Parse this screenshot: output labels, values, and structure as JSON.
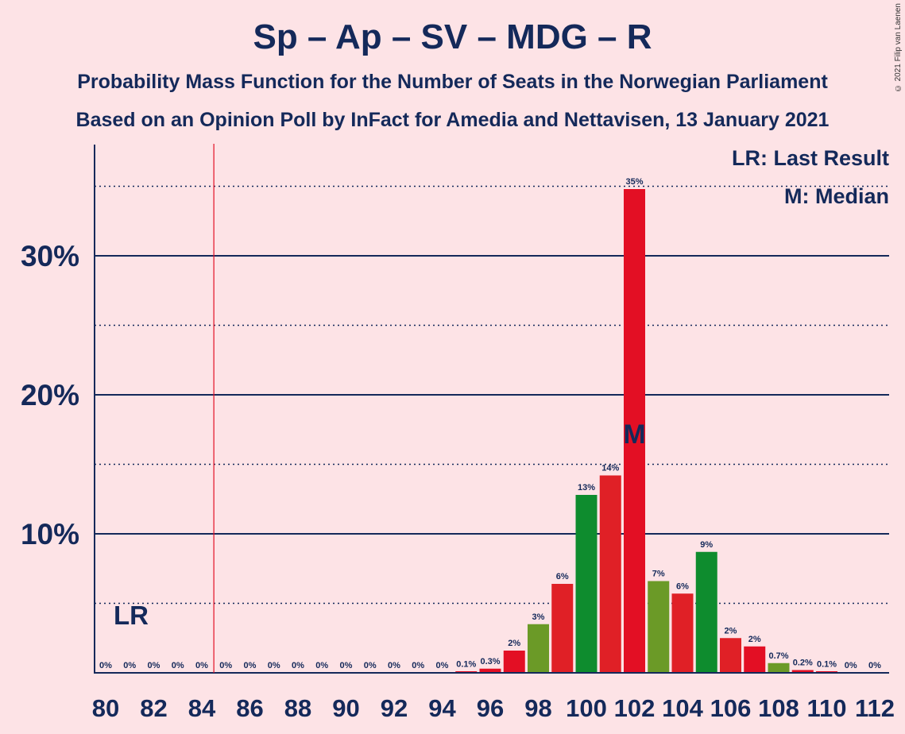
{
  "title": "Sp – Ap – SV – MDG – R",
  "subtitle": "Probability Mass Function for the Number of Seats in the Norwegian Parliament",
  "subtitle2": "Based on an Opinion Poll by InFact for Amedia and Nettavisen, 13 January 2021",
  "copyright": "© 2021 Filip van Laenen",
  "legend": {
    "lr": "LR: Last Result",
    "median": "M: Median"
  },
  "lr_label": "LR",
  "median_label": "M",
  "colors": {
    "red": "#E30F24",
    "red_alt": "#E02026",
    "green": "#0E8C2E",
    "olive": "#6B9A27",
    "axis": "#14295A",
    "lr_line": "#E30F24",
    "background": "#FDE3E6"
  },
  "chart_data": {
    "type": "bar",
    "x": [
      80,
      81,
      82,
      83,
      84,
      85,
      86,
      87,
      88,
      89,
      90,
      91,
      92,
      93,
      94,
      95,
      96,
      97,
      98,
      99,
      100,
      101,
      102,
      103,
      104,
      105,
      106,
      107,
      108,
      109,
      110,
      111,
      112
    ],
    "values": [
      0,
      0,
      0,
      0,
      0,
      0,
      0,
      0,
      0,
      0,
      0,
      0,
      0,
      0,
      0,
      0.1,
      0.3,
      1.6,
      3.5,
      6.4,
      12.8,
      14.2,
      34.8,
      6.6,
      5.7,
      8.7,
      2.5,
      1.9,
      0.7,
      0.2,
      0.1,
      0,
      0
    ],
    "labels": [
      "0%",
      "0%",
      "0%",
      "0%",
      "0%",
      "0%",
      "0%",
      "0%",
      "0%",
      "0%",
      "0%",
      "0%",
      "0%",
      "0%",
      "0%",
      "0.1%",
      "0.3%",
      "2%",
      "3%",
      "6%",
      "13%",
      "14%",
      "35%",
      "7%",
      "6%",
      "9%",
      "2%",
      "2%",
      "0.7%",
      "0.2%",
      "0.1%",
      "0%",
      "0%"
    ],
    "bar_colors": [
      "#E30F24",
      "#E30F24",
      "#E30F24",
      "#E30F24",
      "#E30F24",
      "#E30F24",
      "#E30F24",
      "#E30F24",
      "#E30F24",
      "#E30F24",
      "#E30F24",
      "#E30F24",
      "#E30F24",
      "#E30F24",
      "#E30F24",
      "#E30F24",
      "#E30F24",
      "#E30F24",
      "#6B9A27",
      "#E02026",
      "#0E8C2E",
      "#E02026",
      "#E30F24",
      "#6B9A27",
      "#E02026",
      "#0E8C2E",
      "#E02026",
      "#E30F24",
      "#6B9A27",
      "#E30F24",
      "#E30F24",
      "#E30F24",
      "#E30F24"
    ],
    "xticks": [
      "80",
      "82",
      "84",
      "86",
      "88",
      "90",
      "92",
      "94",
      "96",
      "98",
      "100",
      "102",
      "104",
      "106",
      "108",
      "110",
      "112"
    ],
    "yticks": [
      "10%",
      "20%",
      "30%"
    ],
    "ylim": [
      0,
      38
    ],
    "last_result": 84.5,
    "median": 102
  }
}
